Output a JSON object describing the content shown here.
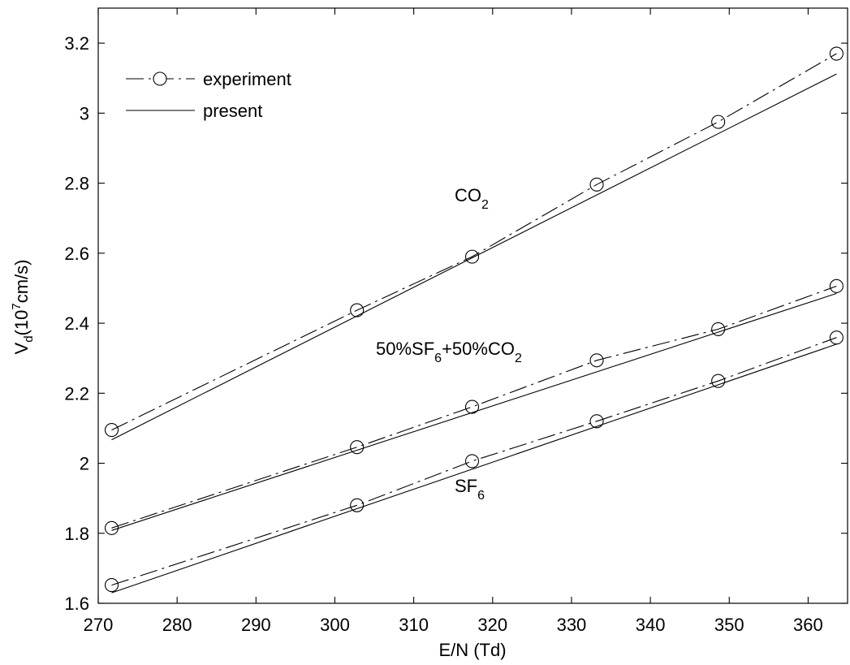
{
  "chart_data": {
    "type": "line",
    "xlabel": "E/N (Td)",
    "ylabel": {
      "main": "V",
      "sub": "d",
      "rest": "(10",
      "sup": "7",
      "unit": "cm/s)"
    },
    "xlim": [
      270,
      365
    ],
    "ylim": [
      1.6,
      3.3
    ],
    "x_ticks": [
      "270",
      "280",
      "290",
      "300",
      "310",
      "320",
      "330",
      "340",
      "350",
      "360"
    ],
    "y_ticks": [
      "1.6",
      "1.8",
      "2",
      "2.2",
      "2.4",
      "2.6",
      "2.8",
      "3",
      "3.2"
    ],
    "grid": false,
    "legend": {
      "placement": "top-left",
      "entries": [
        {
          "label": "experiment",
          "style": "dash-dot with circle markers"
        },
        {
          "label": "present",
          "style": "solid"
        }
      ]
    },
    "annotations": [
      {
        "id": "co2",
        "parts": [
          {
            "t": "CO"
          },
          {
            "t": "2",
            "sub": true
          }
        ]
      },
      {
        "id": "mix",
        "parts": [
          {
            "t": "50%SF"
          },
          {
            "t": "6",
            "sub": true
          },
          {
            "t": "+50%CO"
          },
          {
            "t": "2",
            "sub": true
          }
        ]
      },
      {
        "id": "sf6",
        "parts": [
          {
            "t": "SF"
          },
          {
            "t": "6",
            "sub": true
          }
        ]
      }
    ],
    "series": [
      {
        "group": "co2",
        "kind": "experiment",
        "x": [
          271.7,
          302.8,
          317.4,
          333.2,
          348.6,
          363.6
        ],
        "y": [
          2.095,
          2.437,
          2.59,
          2.796,
          2.975,
          3.17
        ]
      },
      {
        "group": "co2",
        "kind": "present",
        "x": [
          271.7,
          363.6
        ],
        "y": [
          2.067,
          3.112
        ]
      },
      {
        "group": "mix",
        "kind": "experiment",
        "x": [
          271.7,
          302.8,
          317.4,
          333.2,
          348.6,
          363.6
        ],
        "y": [
          1.815,
          2.046,
          2.161,
          2.294,
          2.383,
          2.506
        ]
      },
      {
        "group": "mix",
        "kind": "present",
        "x": [
          271.7,
          363.6
        ],
        "y": [
          1.808,
          2.485
        ]
      },
      {
        "group": "sf6",
        "kind": "experiment",
        "x": [
          271.7,
          302.8,
          317.4,
          333.2,
          348.6,
          363.6
        ],
        "y": [
          1.652,
          1.88,
          2.006,
          2.12,
          2.235,
          2.359
        ]
      },
      {
        "group": "sf6",
        "kind": "present",
        "x": [
          271.7,
          363.6
        ],
        "y": [
          1.63,
          2.34
        ]
      }
    ]
  }
}
